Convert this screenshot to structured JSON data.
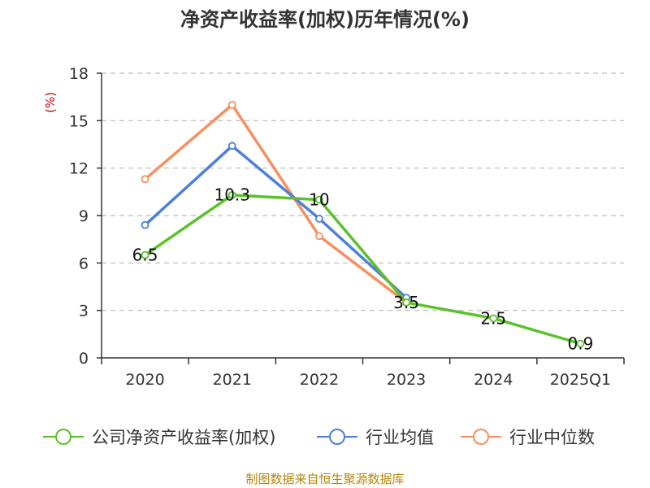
{
  "title": "净资产收益率(加权)历年情况(%)",
  "source": "制图数据来自恒生聚源数据库",
  "chart_data": {
    "type": "line",
    "title": "净资产收益率(加权)历年情况(%)",
    "ylabel": "(%)",
    "xlabel": "",
    "categories": [
      "2020",
      "2021",
      "2022",
      "2023",
      "2024",
      "2025Q1"
    ],
    "ylim": [
      0,
      18
    ],
    "yticks": [
      0,
      3,
      6,
      9,
      12,
      15,
      18
    ],
    "grid": true,
    "legend_position": "bottom",
    "series": [
      {
        "name": "公司净资产收益率(加权)",
        "color": "#5cc12a",
        "values": [
          6.5,
          10.3,
          10.0,
          3.5,
          2.5,
          0.9
        ],
        "labels": [
          "6.5",
          "10.3",
          "10",
          "3.5",
          "2.5",
          "0.9"
        ]
      },
      {
        "name": "行业均值",
        "color": "#4a80d8",
        "values": [
          8.4,
          13.4,
          8.8,
          3.8,
          null,
          null
        ]
      },
      {
        "name": "行业中位数",
        "color": "#f79060",
        "values": [
          11.3,
          16.0,
          7.7,
          3.5,
          null,
          null
        ]
      }
    ]
  }
}
